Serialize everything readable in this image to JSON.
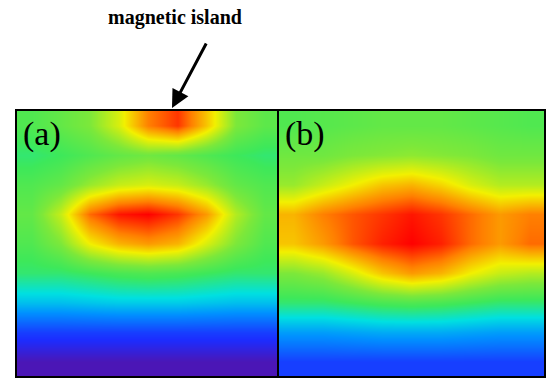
{
  "chart_data": [
    {
      "type": "heatmap",
      "title": "(a)",
      "annotations": [
        {
          "text": "magnetic island"
        }
      ],
      "cells": [
        [
          0.03,
          0.03,
          0.03,
          0.03,
          0.03,
          0.03,
          0.03,
          0.03,
          0.03
        ],
        [
          0.15,
          0.15,
          0.15,
          0.15,
          0.15,
          0.15,
          0.15,
          0.15,
          0.15
        ],
        [
          0.35,
          0.35,
          0.36,
          0.37,
          0.37,
          0.37,
          0.36,
          0.35,
          0.35
        ],
        [
          0.5,
          0.5,
          0.52,
          0.54,
          0.55,
          0.54,
          0.52,
          0.5,
          0.5
        ],
        [
          0.55,
          0.62,
          0.75,
          0.82,
          0.85,
          0.82,
          0.72,
          0.62,
          0.55
        ],
        [
          0.58,
          0.7,
          0.9,
          0.98,
          1.0,
          0.95,
          0.85,
          0.68,
          0.58
        ],
        [
          0.55,
          0.58,
          0.65,
          0.7,
          0.72,
          0.7,
          0.65,
          0.58,
          0.55
        ],
        [
          0.5,
          0.52,
          0.55,
          0.58,
          0.6,
          0.58,
          0.55,
          0.52,
          0.5
        ],
        [
          0.55,
          0.58,
          0.62,
          0.72,
          0.88,
          0.95,
          0.8,
          0.62,
          0.57
        ]
      ],
      "zlim": [
        0,
        1
      ],
      "tick_labels": false
    },
    {
      "type": "heatmap",
      "title": "(b)",
      "cells": [
        [
          0.15,
          0.15,
          0.15,
          0.15,
          0.15,
          0.15,
          0.15,
          0.15,
          0.15
        ],
        [
          0.3,
          0.3,
          0.31,
          0.32,
          0.32,
          0.32,
          0.31,
          0.3,
          0.3
        ],
        [
          0.5,
          0.5,
          0.52,
          0.54,
          0.55,
          0.54,
          0.52,
          0.5,
          0.5
        ],
        [
          0.62,
          0.65,
          0.72,
          0.8,
          0.85,
          0.82,
          0.75,
          0.7,
          0.68
        ],
        [
          0.8,
          0.85,
          0.92,
          0.97,
          1.0,
          0.97,
          0.9,
          0.85,
          0.9
        ],
        [
          0.82,
          0.88,
          0.92,
          0.95,
          0.98,
          0.95,
          0.9,
          0.85,
          0.88
        ],
        [
          0.65,
          0.7,
          0.75,
          0.8,
          0.82,
          0.78,
          0.72,
          0.68,
          0.68
        ],
        [
          0.6,
          0.6,
          0.62,
          0.63,
          0.64,
          0.63,
          0.62,
          0.6,
          0.6
        ],
        [
          0.55,
          0.56,
          0.57,
          0.58,
          0.58,
          0.58,
          0.57,
          0.56,
          0.55
        ]
      ],
      "zlim": [
        0,
        1
      ],
      "tick_labels": false
    }
  ]
}
